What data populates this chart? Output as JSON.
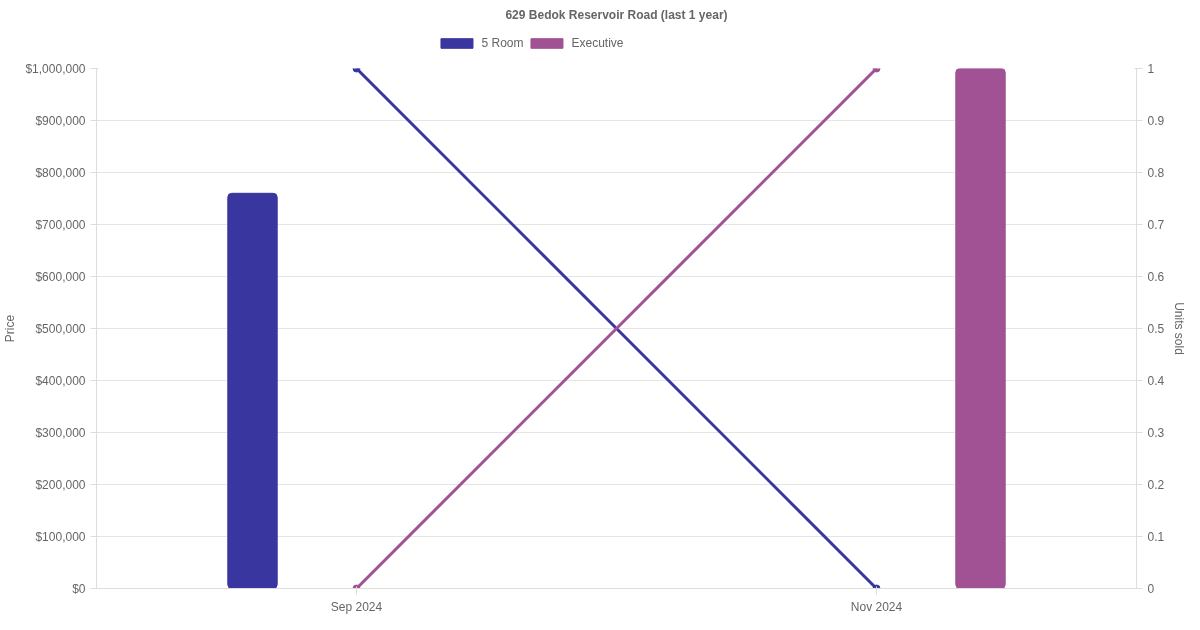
{
  "chart_data": {
    "type": "bar",
    "title": "629 Bedok Reservoir Road (last 1 year)",
    "categories": [
      "Sep 2024",
      "Nov 2024"
    ],
    "ylabel": "Price",
    "y2label": "Units sold",
    "series": [
      {
        "name": "5 Room",
        "color": "#3a36a0",
        "values": [
          760000,
          null
        ]
      },
      {
        "name": "Executive",
        "color": "#a05294",
        "values": [
          null,
          1000000
        ]
      },
      {
        "type": "line",
        "axis": "y2",
        "color": "#3a36a0",
        "values": [
          1,
          0
        ]
      },
      {
        "type": "line",
        "axis": "y2",
        "color": "#a05294",
        "values": [
          0,
          1
        ]
      }
    ],
    "ylim": [
      0,
      1000000
    ],
    "yticks": [
      {
        "value": 0,
        "label": "$0"
      },
      {
        "value": 100000,
        "label": "$100,000"
      },
      {
        "value": 200000,
        "label": "$200,000"
      },
      {
        "value": 300000,
        "label": "$300,000"
      },
      {
        "value": 400000,
        "label": "$400,000"
      },
      {
        "value": 500000,
        "label": "$500,000"
      },
      {
        "value": 600000,
        "label": "$600,000"
      },
      {
        "value": 700000,
        "label": "$700,000"
      },
      {
        "value": 800000,
        "label": "$800,000"
      },
      {
        "value": 900000,
        "label": "$900,000"
      },
      {
        "value": 1000000,
        "label": "$1,000,000"
      }
    ],
    "y2lim": [
      0,
      1
    ],
    "y2ticks": [
      0,
      0.1,
      0.2,
      0.3,
      0.4,
      0.5,
      0.6,
      0.7,
      0.8,
      0.9,
      1
    ],
    "grid": "y",
    "legend": "top",
    "marker": "circle",
    "line_style": "solid"
  }
}
